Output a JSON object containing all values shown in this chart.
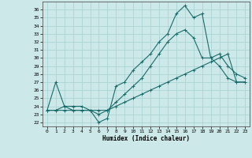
{
  "xlabel": "Humidex (Indice chaleur)",
  "background_color": "#cce8e8",
  "grid_color": "#aad4d4",
  "line_color": "#1a6b6b",
  "xlim": [
    -0.5,
    23.5
  ],
  "ylim": [
    21.5,
    37.0
  ],
  "xticks": [
    0,
    1,
    2,
    3,
    4,
    5,
    6,
    7,
    8,
    9,
    10,
    11,
    12,
    13,
    14,
    15,
    16,
    17,
    18,
    19,
    20,
    21,
    22,
    23
  ],
  "yticks": [
    22,
    23,
    24,
    25,
    26,
    27,
    28,
    29,
    30,
    31,
    32,
    33,
    34,
    35,
    36
  ],
  "line1_x": [
    0,
    1,
    2,
    3,
    4,
    5,
    6,
    7,
    8,
    9,
    10,
    11,
    12,
    13,
    14,
    15,
    16,
    17,
    18,
    19,
    20,
    21,
    22,
    23
  ],
  "line1_y": [
    23.5,
    27.0,
    24.0,
    23.5,
    23.5,
    23.5,
    22.0,
    22.5,
    26.5,
    27.0,
    28.5,
    29.5,
    30.5,
    32.0,
    33.0,
    35.5,
    36.5,
    35.0,
    35.5,
    30.0,
    30.5,
    29.0,
    28.0,
    27.5
  ],
  "line2_x": [
    0,
    1,
    2,
    3,
    4,
    5,
    6,
    7,
    8,
    9,
    10,
    11,
    12,
    13,
    14,
    15,
    16,
    17,
    18,
    19,
    20,
    21,
    22,
    23
  ],
  "line2_y": [
    23.5,
    23.5,
    23.5,
    23.5,
    23.5,
    23.5,
    23.5,
    23.5,
    24.0,
    24.5,
    25.0,
    25.5,
    26.0,
    26.5,
    27.0,
    27.5,
    28.0,
    28.5,
    29.0,
    29.5,
    30.0,
    30.5,
    27.0,
    27.0
  ],
  "line3_x": [
    0,
    1,
    2,
    3,
    4,
    5,
    6,
    7,
    8,
    9,
    10,
    11,
    12,
    13,
    14,
    15,
    16,
    17,
    18,
    19,
    20,
    21,
    22,
    23
  ],
  "line3_y": [
    23.5,
    23.5,
    24.0,
    24.0,
    24.0,
    23.5,
    23.0,
    23.5,
    24.5,
    25.5,
    26.5,
    27.5,
    29.0,
    30.5,
    32.0,
    33.0,
    33.5,
    32.5,
    30.0,
    30.0,
    29.0,
    27.5,
    27.0,
    27.0
  ]
}
